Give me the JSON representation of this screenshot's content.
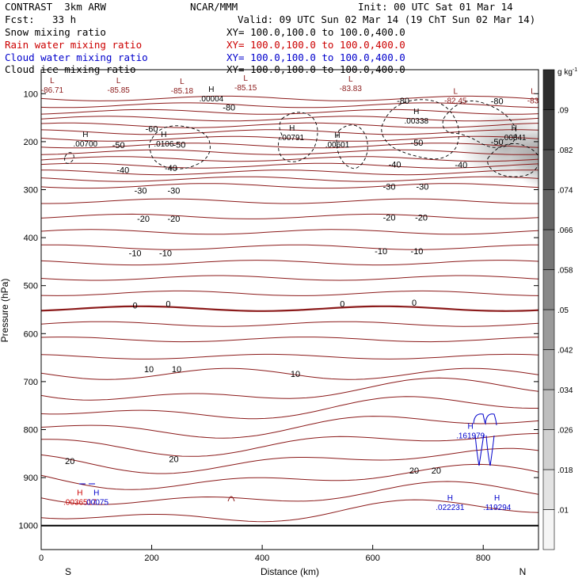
{
  "header": {
    "model": "CONTRAST  3km ARW",
    "org": "NCAR/MMM",
    "init": "Init: 00 UTC Sat 01 Mar 14",
    "fcst_label": "Fcst:",
    "fcst_value": "33 h",
    "valid": "Valid: 09 UTC Sun 02 Mar 14 (19 ChT Sun 02 Mar 14)"
  },
  "fields": [
    {
      "name": "Snow mixing ratio",
      "xy": "XY= 100.0,100.0 to 100.0,400.0",
      "color": "#000000"
    },
    {
      "name": "Rain water mixing ratio",
      "xy": "XY= 100.0,100.0 to 100.0,400.0",
      "color": "#cc0000"
    },
    {
      "name": "Cloud water mixing ratio",
      "xy": "XY= 100.0,100.0 to 100.0,400.0",
      "color": "#0000cc"
    },
    {
      "name": "Cloud ice mixing ratio",
      "xy": "XY= 100.0,100.0 to 100.0,400.0",
      "color": "#000000"
    }
  ],
  "chart_data": {
    "type": "contour cross-section",
    "xlabel": "Distance (km)",
    "ylabel": "Pressure (hPa)",
    "xlim": [
      0,
      900
    ],
    "ylim": [
      1050,
      50
    ],
    "x_ticks": [
      0,
      200,
      400,
      600,
      800
    ],
    "y_ticks": [
      100,
      200,
      300,
      400,
      500,
      600,
      700,
      800,
      900,
      1000
    ],
    "x_ends": {
      "left": "S",
      "right": "N"
    },
    "colorbar": {
      "unit_label": "g kg",
      "unit_exponent": "-1",
      "ticks": [
        ".01",
        ".018",
        ".026",
        ".034",
        ".042",
        ".05",
        ".058",
        ".066",
        ".074",
        ".082",
        ".09"
      ],
      "range": [
        0.006,
        0.098
      ]
    },
    "temperature_contour_labels": [
      {
        "x": 340,
        "p": 128,
        "text": "-80"
      },
      {
        "x": 655,
        "p": 114,
        "text": "-80"
      },
      {
        "x": 825,
        "p": 115,
        "text": "-80"
      },
      {
        "x": 200,
        "p": 173,
        "text": "-60"
      },
      {
        "x": 140,
        "p": 207,
        "text": "-50"
      },
      {
        "x": 250,
        "p": 206,
        "text": "-50"
      },
      {
        "x": 680,
        "p": 202,
        "text": "-50"
      },
      {
        "x": 825,
        "p": 200,
        "text": "-50"
      },
      {
        "x": 148,
        "p": 259,
        "text": "-40"
      },
      {
        "x": 235,
        "p": 255,
        "text": "-40"
      },
      {
        "x": 640,
        "p": 247,
        "text": "-40"
      },
      {
        "x": 760,
        "p": 248,
        "text": "-40"
      },
      {
        "x": 180,
        "p": 302,
        "text": "-30"
      },
      {
        "x": 240,
        "p": 302,
        "text": "-30"
      },
      {
        "x": 630,
        "p": 293,
        "text": "-30"
      },
      {
        "x": 690,
        "p": 293,
        "text": "-30"
      },
      {
        "x": 185,
        "p": 360,
        "text": "-20"
      },
      {
        "x": 240,
        "p": 360,
        "text": "-20"
      },
      {
        "x": 630,
        "p": 358,
        "text": "-20"
      },
      {
        "x": 688,
        "p": 358,
        "text": "-20"
      },
      {
        "x": 170,
        "p": 432,
        "text": "-10"
      },
      {
        "x": 225,
        "p": 432,
        "text": "-10"
      },
      {
        "x": 615,
        "p": 428,
        "text": "-10"
      },
      {
        "x": 680,
        "p": 428,
        "text": "-10"
      },
      {
        "x": 170,
        "p": 541,
        "text": "0"
      },
      {
        "x": 230,
        "p": 538,
        "text": "0"
      },
      {
        "x": 545,
        "p": 538,
        "text": "0"
      },
      {
        "x": 675,
        "p": 535,
        "text": "0"
      },
      {
        "x": 195,
        "p": 674,
        "text": "10"
      },
      {
        "x": 245,
        "p": 674,
        "text": "10"
      },
      {
        "x": 460,
        "p": 684,
        "text": "10"
      },
      {
        "x": 52,
        "p": 865,
        "text": "20"
      },
      {
        "x": 240,
        "p": 861,
        "text": "20"
      },
      {
        "x": 675,
        "p": 885,
        "text": "20"
      },
      {
        "x": 715,
        "p": 885,
        "text": "20"
      }
    ],
    "extrema_labels": [
      {
        "x": 20,
        "p": 88,
        "marker": "L",
        "value": "-86.71",
        "color": "#8b1a1a"
      },
      {
        "x": 140,
        "p": 88,
        "marker": "L",
        "value": "-85.85",
        "color": "#8b1a1a"
      },
      {
        "x": 255,
        "p": 90,
        "marker": "L",
        "value": "-85.18",
        "color": "#8b1a1a"
      },
      {
        "x": 370,
        "p": 83,
        "marker": "L",
        "value": "-85.15",
        "color": "#8b1a1a"
      },
      {
        "x": 560,
        "p": 85,
        "marker": "L",
        "value": "-83.83",
        "color": "#8b1a1a"
      },
      {
        "x": 750,
        "p": 110,
        "marker": "L",
        "value": "-82.45",
        "color": "#8b1a1a"
      },
      {
        "x": 890,
        "p": 110,
        "marker": "L",
        "value": "-83",
        "color": "#8b1a1a"
      },
      {
        "x": 308,
        "p": 106,
        "marker": "H",
        "value": ".00004",
        "color": "#000000"
      },
      {
        "x": 80,
        "p": 200,
        "marker": "H",
        "value": ".00700",
        "color": "#000000"
      },
      {
        "x": 222,
        "p": 200,
        "marker": "H",
        "value": ".0106",
        "color": "#000000"
      },
      {
        "x": 454,
        "p": 187,
        "marker": "H",
        "value": ".00791",
        "color": "#000000"
      },
      {
        "x": 536,
        "p": 202,
        "marker": "H",
        "value": ".00601",
        "color": "#000000"
      },
      {
        "x": 679,
        "p": 152,
        "marker": "H",
        "value": ".00338",
        "color": "#000000"
      },
      {
        "x": 856,
        "p": 187,
        "marker": "H",
        "value": ".00841",
        "color": "#000000"
      },
      {
        "x": 777,
        "p": 808,
        "marker": "H",
        "value": ".161979",
        "color": "#0000cc"
      },
      {
        "x": 70,
        "p": 947,
        "marker": "H",
        "value": ".0036517",
        "color": "#cc0000"
      },
      {
        "x": 100,
        "p": 947,
        "marker": "H",
        "value": ".00075",
        "color": "#0000cc"
      },
      {
        "x": 740,
        "p": 958,
        "marker": "H",
        "value": ".022231",
        "color": "#0000cc"
      },
      {
        "x": 825,
        "p": 958,
        "marker": "H",
        "value": ".119294",
        "color": "#0000cc"
      }
    ]
  }
}
